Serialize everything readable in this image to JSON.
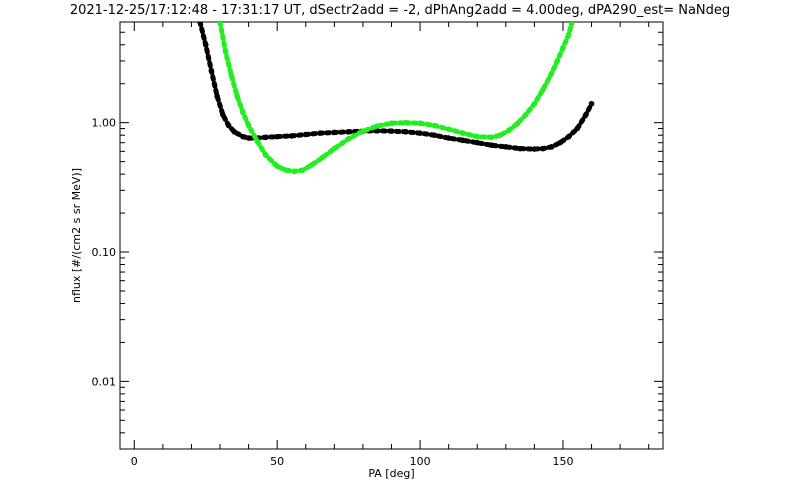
{
  "chart_data": {
    "type": "scatter",
    "title": "2021-12-25/17:12:48 - 17:31:17 UT, dSectr2add = -2, dPhAng2add = 4.00deg, dPA290_est=   NaNdeg",
    "xlabel": "PA [deg]",
    "ylabel": "nflux [#/(cm2 s sr MeV)]",
    "xlim": [
      -5,
      185
    ],
    "ylim": [
      0.003,
      6
    ],
    "y_scale": "log",
    "grid": false,
    "x_ticks": [
      {
        "value": 0,
        "label": "0"
      },
      {
        "value": 50,
        "label": "50"
      },
      {
        "value": 100,
        "label": "100"
      },
      {
        "value": 150,
        "label": "150"
      }
    ],
    "y_ticks": [
      {
        "value": 0.01,
        "label": "0.01"
      },
      {
        "value": 0.1,
        "label": "0.10"
      },
      {
        "value": 1,
        "label": "1.00"
      }
    ],
    "series": [
      {
        "color": "#000000",
        "x": [
          23,
          25,
          27,
          29,
          31,
          33,
          35,
          38,
          40,
          43,
          46,
          50,
          55,
          60,
          65,
          70,
          75,
          80,
          85,
          90,
          95,
          100,
          105,
          110,
          115,
          120,
          125,
          130,
          135,
          140,
          143,
          146,
          149,
          152,
          155,
          158,
          160
        ],
        "y": [
          6.0,
          4.0,
          2.5,
          1.6,
          1.15,
          0.95,
          0.85,
          0.78,
          0.76,
          0.76,
          0.77,
          0.78,
          0.79,
          0.81,
          0.83,
          0.84,
          0.85,
          0.86,
          0.865,
          0.86,
          0.85,
          0.83,
          0.8,
          0.76,
          0.73,
          0.7,
          0.67,
          0.65,
          0.63,
          0.625,
          0.63,
          0.65,
          0.7,
          0.78,
          0.9,
          1.15,
          1.4
        ]
      },
      {
        "color": "#22ee22",
        "x": [
          30,
          32,
          34,
          36,
          38,
          40,
          43,
          46,
          50,
          53,
          56,
          59,
          62,
          66,
          70,
          75,
          80,
          85,
          90,
          95,
          100,
          105,
          110,
          115,
          120,
          125,
          128,
          131,
          134,
          137,
          140,
          143,
          146,
          148,
          150,
          152,
          153
        ],
        "y": [
          6.0,
          3.5,
          2.3,
          1.6,
          1.2,
          0.95,
          0.72,
          0.56,
          0.46,
          0.43,
          0.42,
          0.43,
          0.47,
          0.54,
          0.63,
          0.75,
          0.86,
          0.94,
          0.99,
          1.0,
          0.99,
          0.95,
          0.89,
          0.83,
          0.78,
          0.77,
          0.8,
          0.87,
          0.98,
          1.15,
          1.4,
          1.8,
          2.4,
          3.0,
          3.8,
          4.8,
          5.8
        ]
      }
    ]
  }
}
